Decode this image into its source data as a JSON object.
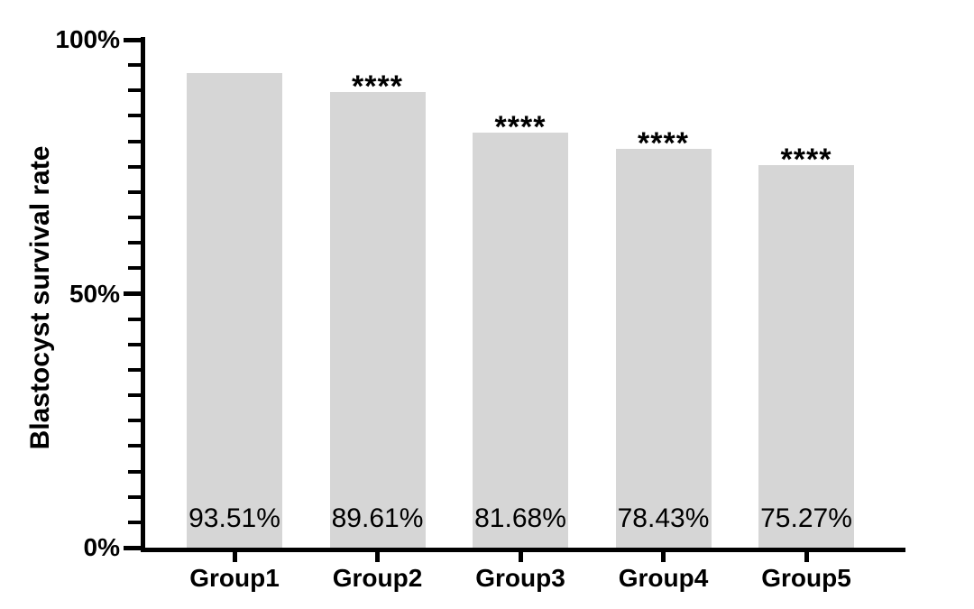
{
  "chart_data": {
    "type": "bar",
    "title": "",
    "xlabel": "",
    "ylabel": "Blastocyst survival rate",
    "categories": [
      "Group1",
      "Group2",
      "Group3",
      "Group4",
      "Group5"
    ],
    "values": [
      93.51,
      89.61,
      81.68,
      78.43,
      75.27
    ],
    "bar_labels": [
      "93.51%",
      "89.61%",
      "81.68%",
      "78.43%",
      "75.27%"
    ],
    "significance_markers": [
      "",
      "****",
      "****",
      "****",
      "****"
    ],
    "ylim": [
      0,
      100
    ],
    "y_major_ticks": [
      {
        "value": 0,
        "label": "0%"
      },
      {
        "value": 50,
        "label": "50%"
      },
      {
        "value": 100,
        "label": "100%"
      }
    ],
    "y_minor_tick_step": 5,
    "grid": false,
    "legend_position": "none",
    "bar_color": "#d6d6d6",
    "axis_color": "#000000",
    "text_color": "#000000",
    "background_color": "#ffffff"
  }
}
